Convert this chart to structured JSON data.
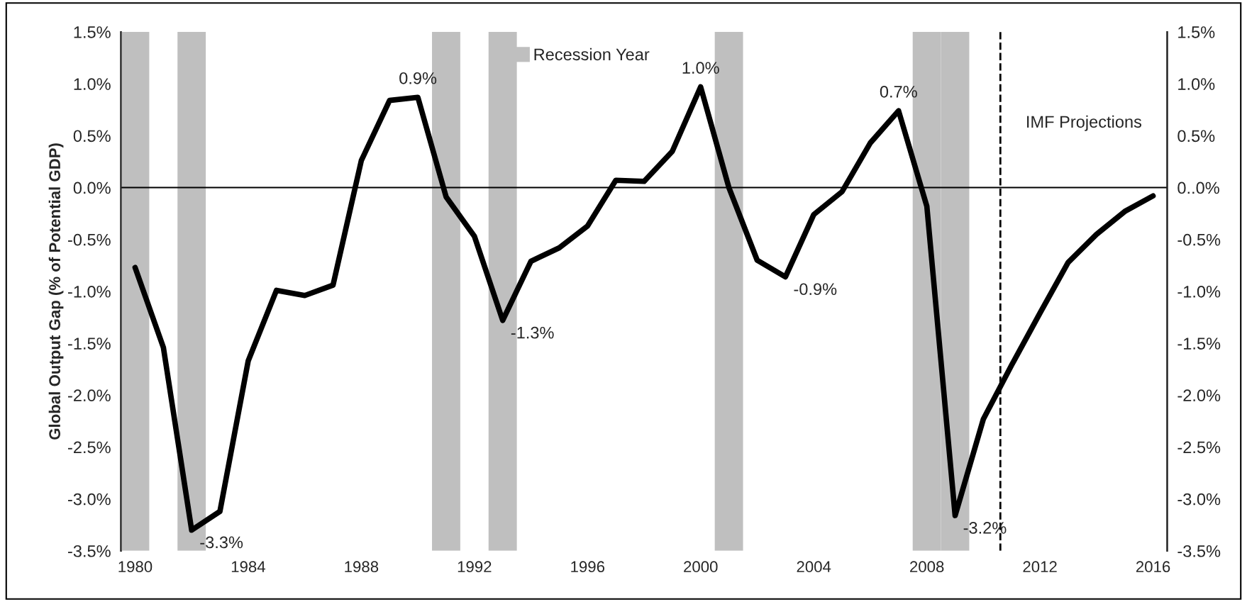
{
  "chart_data": {
    "type": "line",
    "ylabel": "Global Output Gap (% of Potential GDP)",
    "x": [
      1980,
      1981,
      1982,
      1983,
      1984,
      1985,
      1986,
      1987,
      1988,
      1989,
      1990,
      1991,
      1992,
      1993,
      1994,
      1995,
      1996,
      1997,
      1998,
      1999,
      2000,
      2001,
      2002,
      2003,
      2004,
      2005,
      2006,
      2007,
      2008,
      2009,
      2010,
      2011,
      2012,
      2013,
      2014,
      2015,
      2016
    ],
    "series": [
      {
        "type": "bar",
        "name": "Recession Year",
        "color": "#bfbfbf",
        "x": [
          1980,
          1982,
          1991,
          1993,
          2001,
          2008,
          2009
        ],
        "base": [
          -3.5,
          -3.5,
          -3.5,
          -3.5,
          -3.5,
          -3.5,
          -3.5
        ],
        "values": [
          5,
          5,
          5,
          5,
          5,
          5,
          5
        ]
      },
      {
        "color": "#000000",
        "values": [
          -0.77,
          -1.54,
          -3.3,
          -3.12,
          -1.67,
          -0.99,
          -1.04,
          -0.94,
          0.26,
          0.84,
          0.87,
          -0.09,
          -0.47,
          -1.28,
          -0.71,
          -0.58,
          -0.37,
          0.07,
          0.06,
          0.35,
          0.97,
          0.0,
          -0.7,
          -0.86,
          -0.26,
          -0.04,
          0.43,
          0.74,
          -0.18,
          -3.16,
          -2.23,
          -1.71,
          -1.21,
          -0.72,
          -0.45,
          -0.23,
          -0.08
        ],
        "value_labels": [
          null,
          null,
          "-3.3%",
          null,
          null,
          null,
          null,
          null,
          null,
          null,
          "0.9%",
          null,
          null,
          "-1.3%",
          null,
          null,
          null,
          null,
          null,
          null,
          "1.0%",
          null,
          null,
          "-0.9%",
          null,
          null,
          null,
          "0.7%",
          null,
          "-3.2%",
          null,
          null,
          null,
          null,
          null,
          null,
          null
        ]
      }
    ],
    "xlim": [
      1979.5,
      2016.5
    ],
    "xticks": [
      1980,
      1984,
      1988,
      1992,
      1996,
      2000,
      2004,
      2008,
      2012,
      2016
    ],
    "ylim": [
      -3.5,
      1.5
    ],
    "yticks": [
      {
        "value": 1.5,
        "label": "1.5%"
      },
      {
        "value": 1.0,
        "label": "1.0%"
      },
      {
        "value": 0.5,
        "label": "0.5%"
      },
      {
        "value": 0.0,
        "label": "0.0%"
      },
      {
        "value": -0.5,
        "label": "-0.5%"
      },
      {
        "value": -1.0,
        "label": "-1.0%"
      },
      {
        "value": -1.5,
        "label": "-1.5%"
      },
      {
        "value": -2.0,
        "label": "-2.0%"
      },
      {
        "value": -2.5,
        "label": "-2.5%"
      },
      {
        "value": -3.0,
        "label": "-3.0%"
      },
      {
        "value": -3.5,
        "label": "-3.5%"
      }
    ],
    "y2lim": [
      -3.5,
      1.5
    ],
    "y2ticks": [
      {
        "value": 1.5,
        "label": "1.5%"
      },
      {
        "value": 1.0,
        "label": "1.0%"
      },
      {
        "value": 0.5,
        "label": "0.5%"
      },
      {
        "value": 0.0,
        "label": "0..0%"
      },
      {
        "value": -0.5,
        "label": "-0.5%"
      },
      {
        "value": -1.0,
        "label": "-1.0%"
      },
      {
        "value": -1.5,
        "label": "-1.5%"
      },
      {
        "value": -2.0,
        "label": "-2.0%"
      },
      {
        "value": -2.5,
        "label": "-2.5%"
      },
      {
        "value": -3.0,
        "label": "-3.0%"
      },
      {
        "value": -3.5,
        "label": "-3.5%"
      }
    ],
    "ref_lines": [
      {
        "axis": "y",
        "value": 0,
        "color": "#000000",
        "line_style": "solid"
      },
      {
        "axis": "x",
        "value": 2010.6,
        "label": "IMF Projections",
        "color": "#000000",
        "line_style": "dashed"
      }
    ],
    "legend": "top",
    "grid": false,
    "marker": "none",
    "line_style": "solid"
  }
}
